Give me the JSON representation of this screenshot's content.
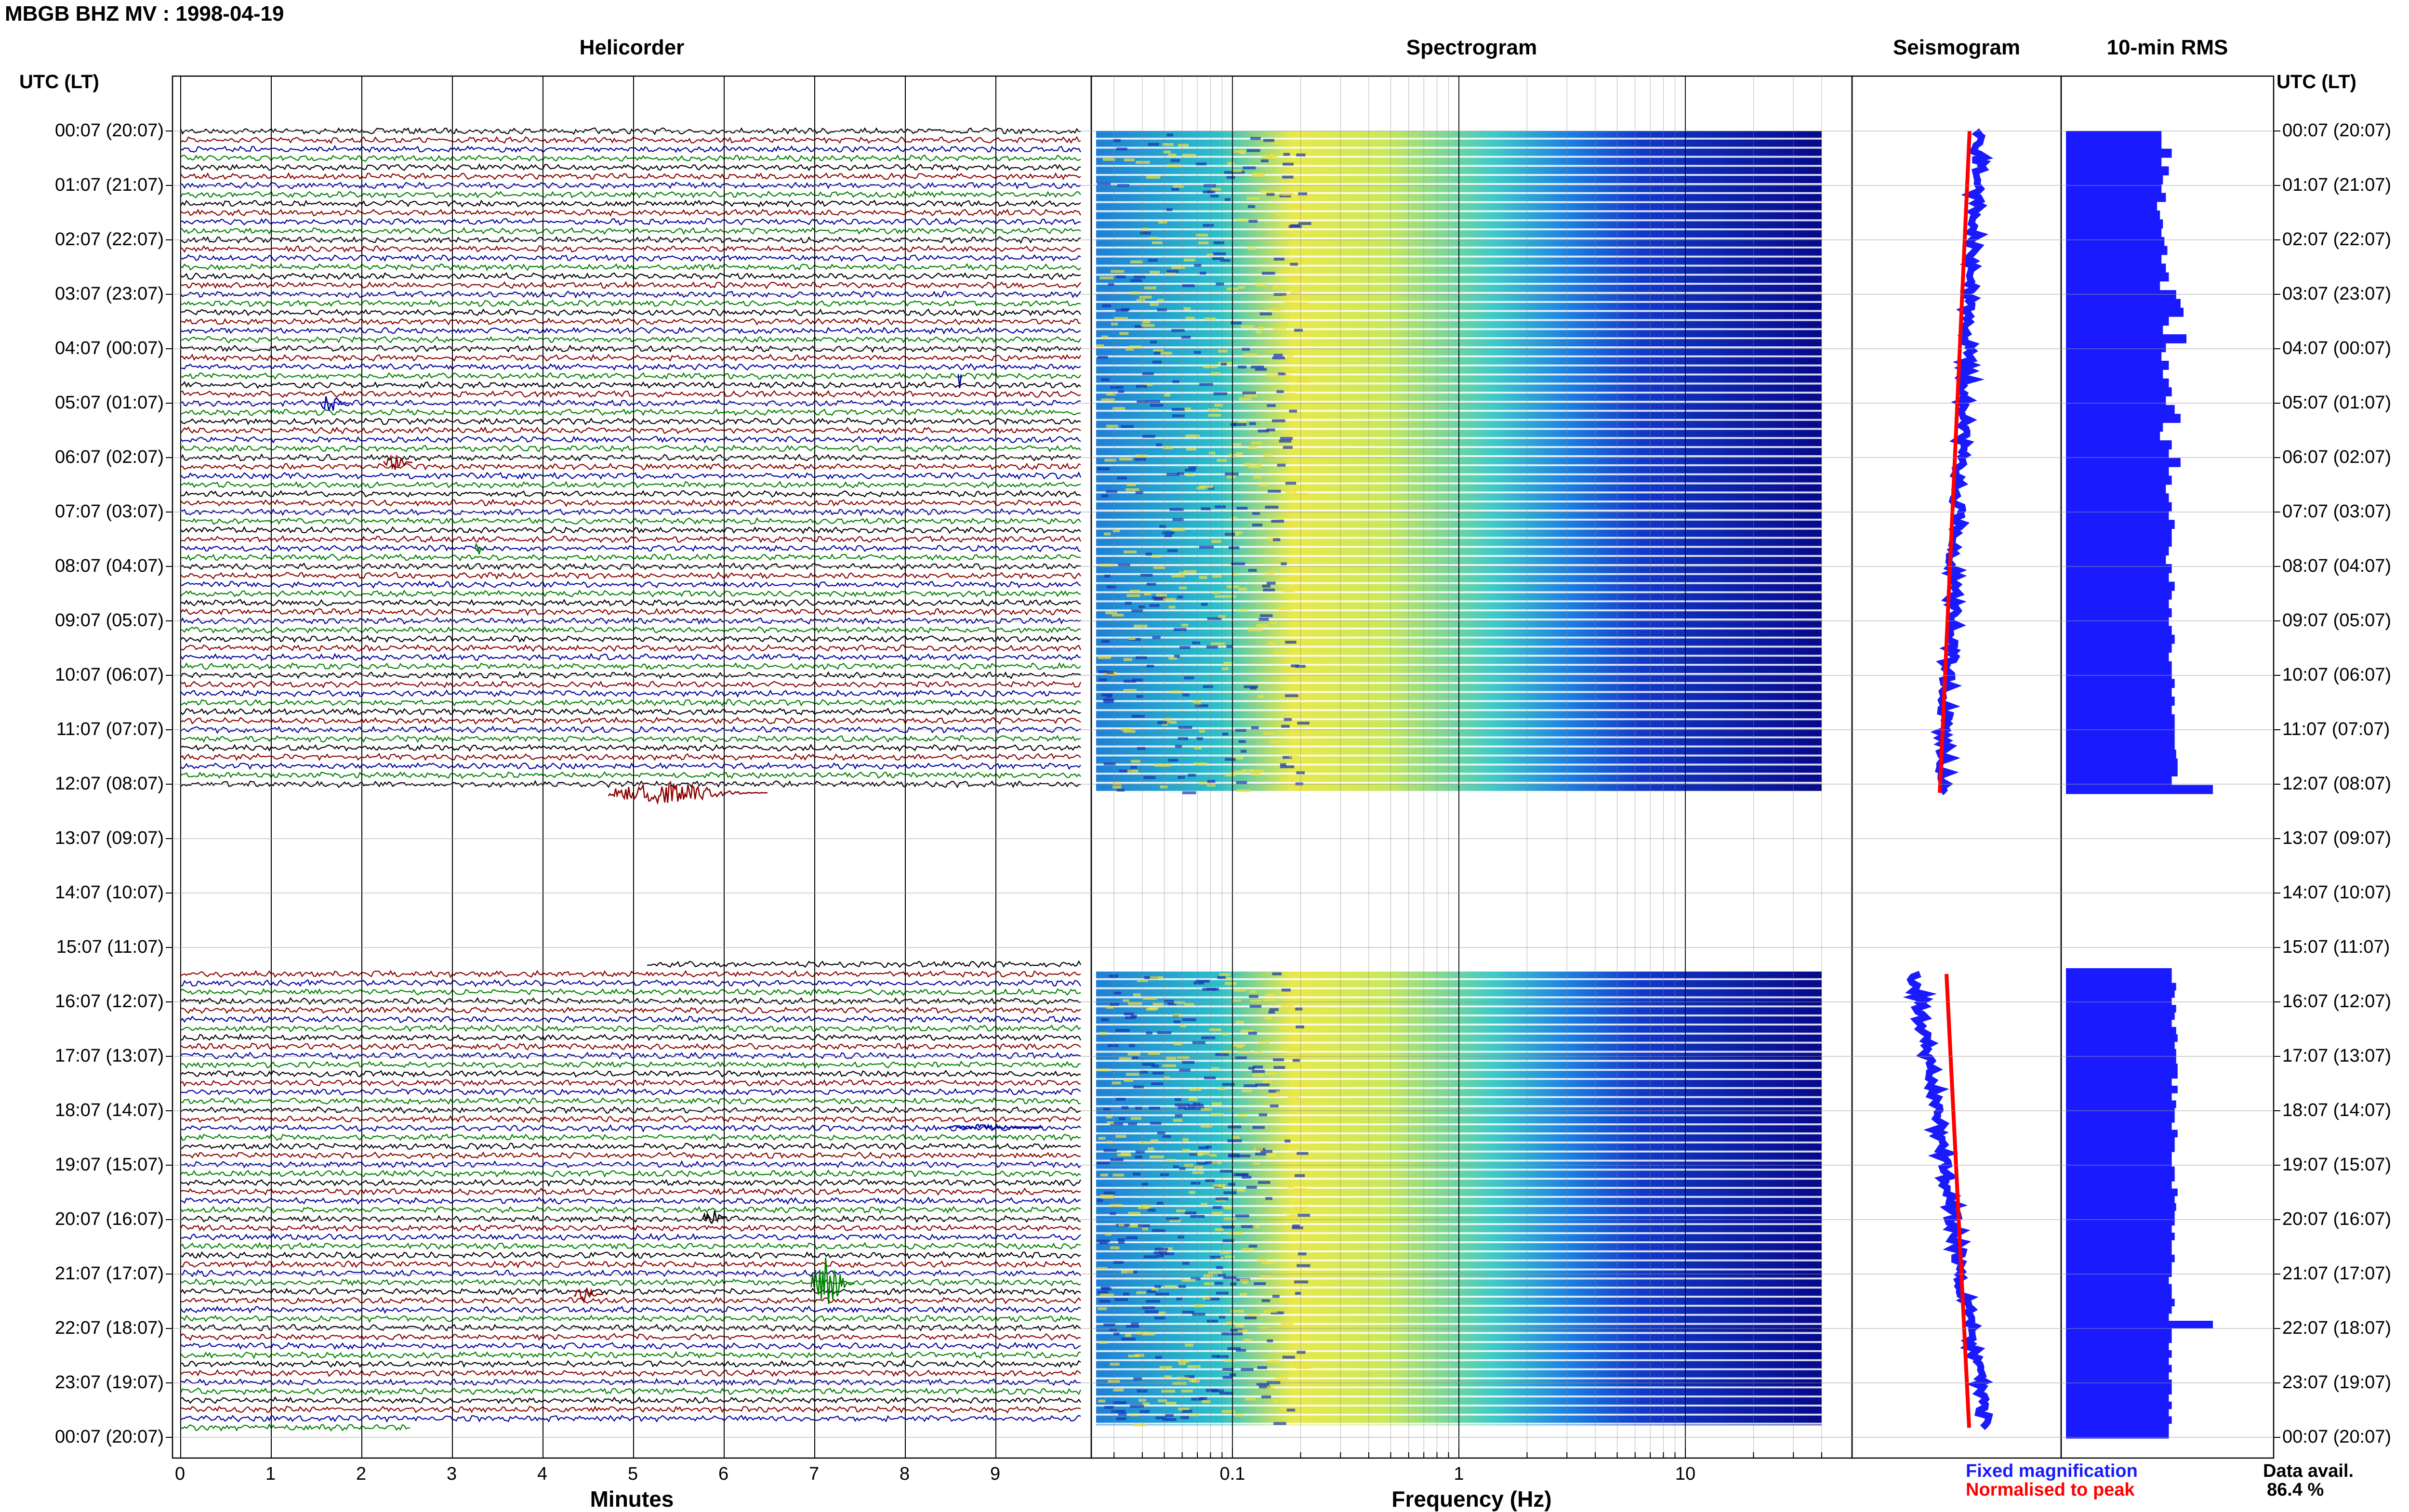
{
  "header": {
    "title": "MBGB BHZ MV : 1998-04-19",
    "utc_left": "UTC (LT)",
    "utc_right": "UTC (LT)"
  },
  "panels": {
    "helicorder": "Helicorder",
    "spectrogram": "Spectrogram",
    "seismogram": "Seismogram",
    "rms": "10-min RMS"
  },
  "axes": {
    "minutes_label": "Minutes",
    "frequency_label": "Frequency (Hz)"
  },
  "legend": {
    "fixed": "Fixed magnification",
    "normalised": "Normalised to peak",
    "fixed_color": "#1a1aff",
    "normalised_color": "#ff0000"
  },
  "data_avail": {
    "label": "Data avail.",
    "value": "86.4 %"
  },
  "colors": {
    "trace_cycle": [
      "#000000",
      "#8b0000",
      "#0000a0",
      "#008000"
    ],
    "rms_bar": "#1a1aff",
    "seismo_fixed": "#1a1aff",
    "seismo_norm": "#ff0000",
    "spectro_low": "#00008b",
    "spectro_high": "#ffff00"
  },
  "chart_data": [
    {
      "type": "line",
      "name": "helicorder",
      "xlabel": "Minutes",
      "x_ticks": [
        "0",
        "1",
        "2",
        "3",
        "4",
        "5",
        "6",
        "7",
        "8",
        "9"
      ],
      "xlim": [
        0,
        10
      ],
      "row_labels": [
        "00:07 (20:07)",
        "01:07 (21:07)",
        "02:07 (22:07)",
        "03:07 (23:07)",
        "04:07 (00:07)",
        "05:07 (01:07)",
        "06:07 (02:07)",
        "07:07 (03:07)",
        "08:07 (04:07)",
        "09:07 (05:07)",
        "10:07 (06:07)",
        "11:07 (07:07)",
        "12:07 (08:07)",
        "13:07 (09:07)",
        "14:07 (10:07)",
        "15:07 (11:07)",
        "16:07 (12:07)",
        "17:07 (13:07)",
        "18:07 (14:07)",
        "19:07 (15:07)",
        "20:07 (16:07)",
        "21:07 (17:07)",
        "22:07 (18:07)",
        "23:07 (19:07)",
        "00:07 (20:07)"
      ],
      "data_gap_hours": [
        "12:27",
        "15:47"
      ],
      "traces_per_hour": 6
    },
    {
      "type": "heatmap",
      "name": "spectrogram",
      "xlabel": "Frequency (Hz)",
      "x_scale": "log",
      "x_ticks": [
        "0.1",
        "1",
        "10"
      ],
      "xlim": [
        0.025,
        50
      ],
      "data_range_hz": [
        0.03,
        40
      ]
    },
    {
      "type": "bar",
      "name": "10-min RMS",
      "orientation": "horizontal",
      "segment_1_values": [
        0.65,
        0.65,
        0.72,
        0.65,
        0.7,
        0.66,
        0.65,
        0.68,
        0.62,
        0.64,
        0.66,
        0.65,
        0.67,
        0.69,
        0.65,
        0.68,
        0.7,
        0.64,
        0.75,
        0.78,
        0.8,
        0.7,
        0.66,
        0.82,
        0.68,
        0.65,
        0.7,
        0.66,
        0.7,
        0.72,
        0.68,
        0.74,
        0.78,
        0.66,
        0.64,
        0.72,
        0.7,
        0.78,
        0.7,
        0.72,
        0.68,
        0.7,
        0.72,
        0.7,
        0.74,
        0.72,
        0.72,
        0.7,
        0.68,
        0.72,
        0.7,
        0.74,
        0.72,
        0.7,
        0.72,
        0.7,
        0.72,
        0.74,
        0.72,
        0.7,
        0.72,
        0.72,
        0.74,
        0.72,
        0.74,
        0.72,
        0.74,
        0.74,
        0.74,
        0.74,
        0.75,
        0.76,
        0.76,
        0.72,
        1.0
      ],
      "segment_2_values": [
        0.72,
        0.72,
        0.75,
        0.74,
        0.72,
        0.75,
        0.74,
        0.72,
        0.75,
        0.76,
        0.74,
        0.75,
        0.75,
        0.76,
        0.76,
        0.72,
        0.76,
        0.72,
        0.75,
        0.74,
        0.74,
        0.72,
        0.76,
        0.74,
        0.74,
        0.72,
        0.72,
        0.74,
        0.74,
        0.72,
        0.76,
        0.74,
        0.75,
        0.74,
        0.74,
        0.72,
        0.74,
        0.72,
        0.72,
        0.74,
        0.72,
        0.72,
        0.7,
        0.72,
        0.72,
        0.74,
        0.72,
        0.7,
        1.0,
        0.72,
        0.72,
        0.7,
        0.72,
        0.7,
        0.72,
        0.7,
        0.72,
        0.72,
        0.7,
        0.72,
        0.7,
        0.72,
        0.7,
        0.7
      ]
    },
    {
      "type": "line",
      "name": "seismogram",
      "series": [
        {
          "name": "Fixed magnification"
        },
        {
          "name": "Normalised to peak"
        }
      ]
    }
  ]
}
